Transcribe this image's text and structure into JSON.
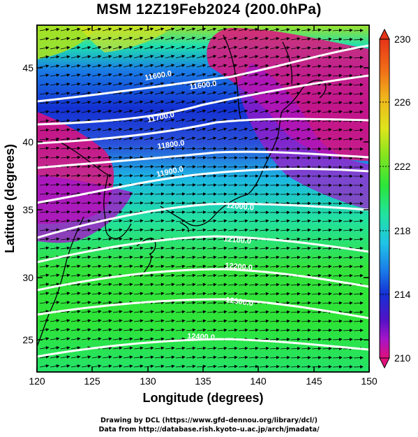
{
  "title": "MSM 12Z19Feb2024 (200.0hPa)",
  "x_axis": {
    "label": "Longitude (degrees)",
    "ticks": [
      "120",
      "125",
      "130",
      "135",
      "140",
      "145",
      "150"
    ]
  },
  "y_axis": {
    "label": "Latitude  (degrees)",
    "ticks": [
      "25",
      "30",
      "35",
      "40",
      "45"
    ]
  },
  "colorbar": {
    "min": 210,
    "max": 230,
    "labels": [
      "230",
      "226",
      "222",
      "218",
      "214",
      "210"
    ],
    "colors": [
      "#e0107c",
      "#a515c8",
      "#5212c6",
      "#1530d4",
      "#1a78e8",
      "#20c3e6",
      "#21e3b8",
      "#22e37a",
      "#2be53a",
      "#8ae41e",
      "#dee41c",
      "#f0b21c",
      "#f07018",
      "#e63418"
    ]
  },
  "contours": [
    {
      "label": "11600.0"
    },
    {
      "label": "11700.0"
    },
    {
      "label": "11800.0"
    },
    {
      "label": "11900.0"
    },
    {
      "label": "12000.0"
    },
    {
      "label": "12100.0"
    },
    {
      "label": "12200.0"
    },
    {
      "label": "12300.0"
    },
    {
      "label": "12400.0"
    }
  ],
  "footer": {
    "line1": "Drawing by DCL (https://www.gfd–dennou.org/library/dcl/)",
    "line2": "Data from http://database.rish.kyoto–u.ac.jp/arch/jmadata/"
  }
}
